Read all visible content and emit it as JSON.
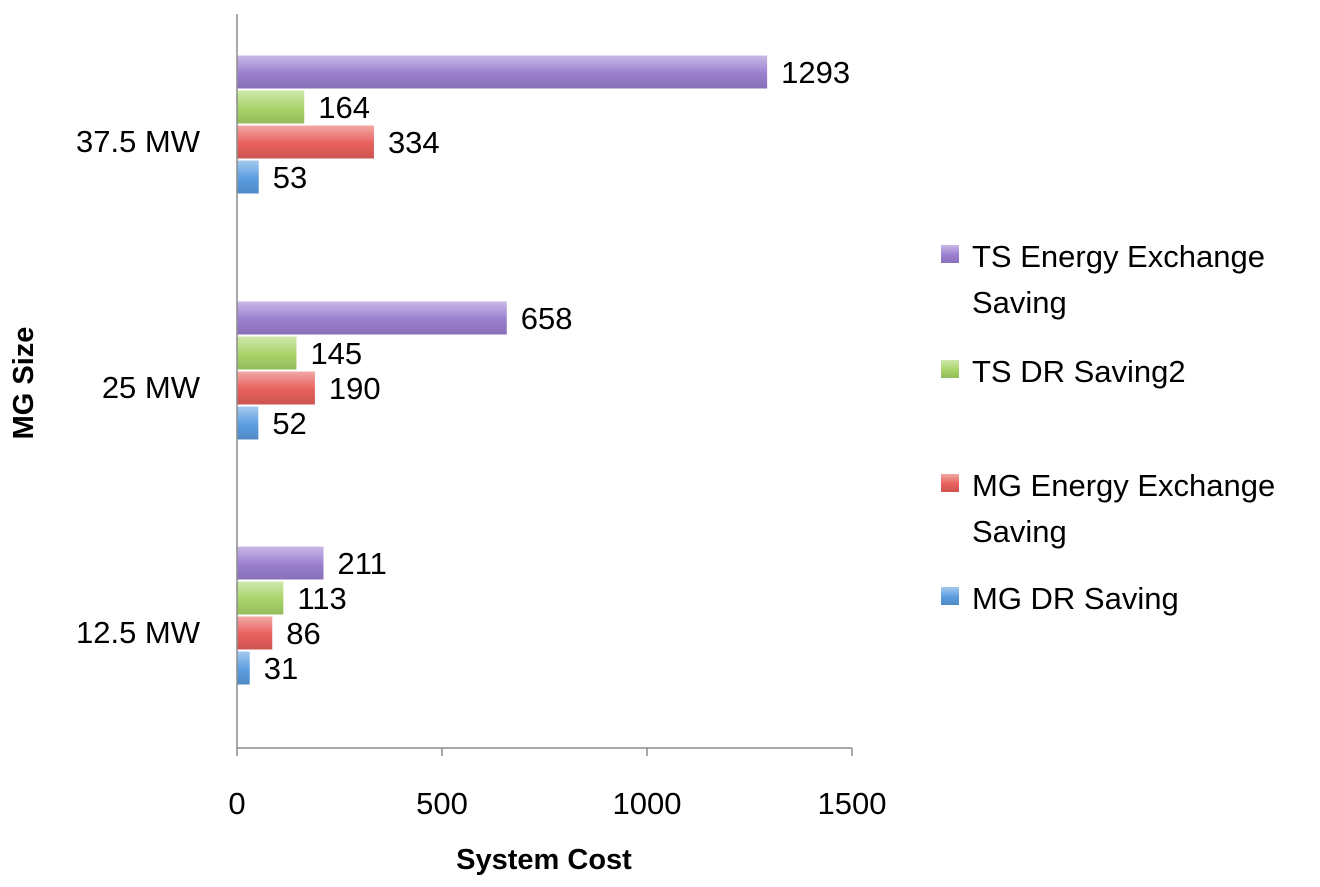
{
  "chart_data": {
    "type": "bar",
    "orientation": "horizontal",
    "categories": [
      "12.5 MW",
      "25 MW",
      "37.5 MW"
    ],
    "series": [
      {
        "name": "TS Energy Exchange Saving",
        "color": "#9b7fd0",
        "values": [
          211,
          658,
          1293
        ]
      },
      {
        "name": "TS DR Saving2",
        "color": "#a8d468",
        "values": [
          113,
          145,
          164
        ]
      },
      {
        "name": "MG Energy Exchange Saving",
        "color": "#e8605c",
        "values": [
          86,
          190,
          334
        ]
      },
      {
        "name": "MG DR Saving",
        "color": "#5b9de0",
        "values": [
          31,
          52,
          53
        ]
      }
    ],
    "xlabel": "System Cost",
    "ylabel": "MG Size",
    "xlim": [
      0,
      1500
    ],
    "xticks": [
      "0",
      "500",
      "1000",
      "1500"
    ],
    "grid": false,
    "legend_position": "right"
  }
}
